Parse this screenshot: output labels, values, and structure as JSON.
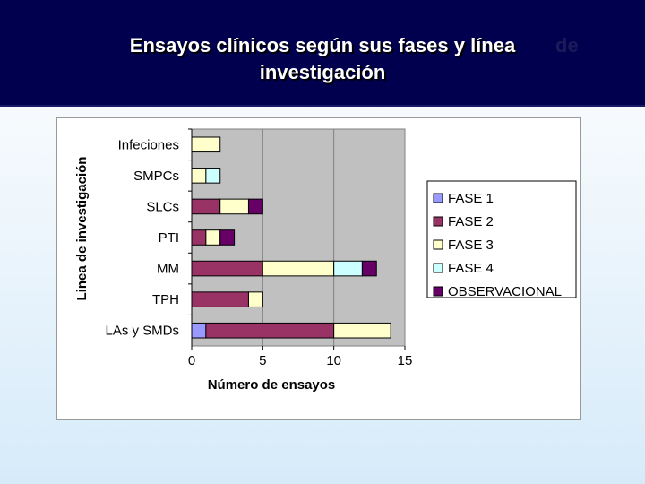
{
  "slide": {
    "title": "Ensayos clínicos según sus fases y línea\ninvestigación",
    "title_ghost": "de"
  },
  "chart_data": {
    "type": "bar",
    "orientation": "horizontal",
    "stacked": true,
    "categories": [
      "Infeciones",
      "SMPCs",
      "SLCs",
      "PTI",
      "MM",
      "TPH",
      "LAs y SMDs"
    ],
    "series": [
      {
        "name": "FASE 1",
        "color": "#9999ff",
        "values": [
          0,
          0,
          0,
          0,
          0,
          0,
          1
        ]
      },
      {
        "name": "FASE 2",
        "color": "#993366",
        "values": [
          0,
          0,
          2,
          1,
          5,
          4,
          9
        ]
      },
      {
        "name": "FASE 3",
        "color": "#ffffcc",
        "values": [
          2,
          1,
          2,
          1,
          5,
          1,
          4
        ]
      },
      {
        "name": "FASE 4",
        "color": "#ccffff",
        "values": [
          0,
          1,
          0,
          0,
          2,
          0,
          0
        ]
      },
      {
        "name": "OBSERVACIONAL",
        "color": "#660066",
        "values": [
          0,
          0,
          1,
          1,
          1,
          0,
          0
        ]
      }
    ],
    "xlabel": "Número de ensayos",
    "ylabel": "Linea de investigación",
    "xlim": [
      0,
      15
    ],
    "xticks": [
      "0",
      "5",
      "10",
      "15"
    ],
    "grid": true,
    "plot_background": "#c0c0c0",
    "legend_position": "right"
  }
}
